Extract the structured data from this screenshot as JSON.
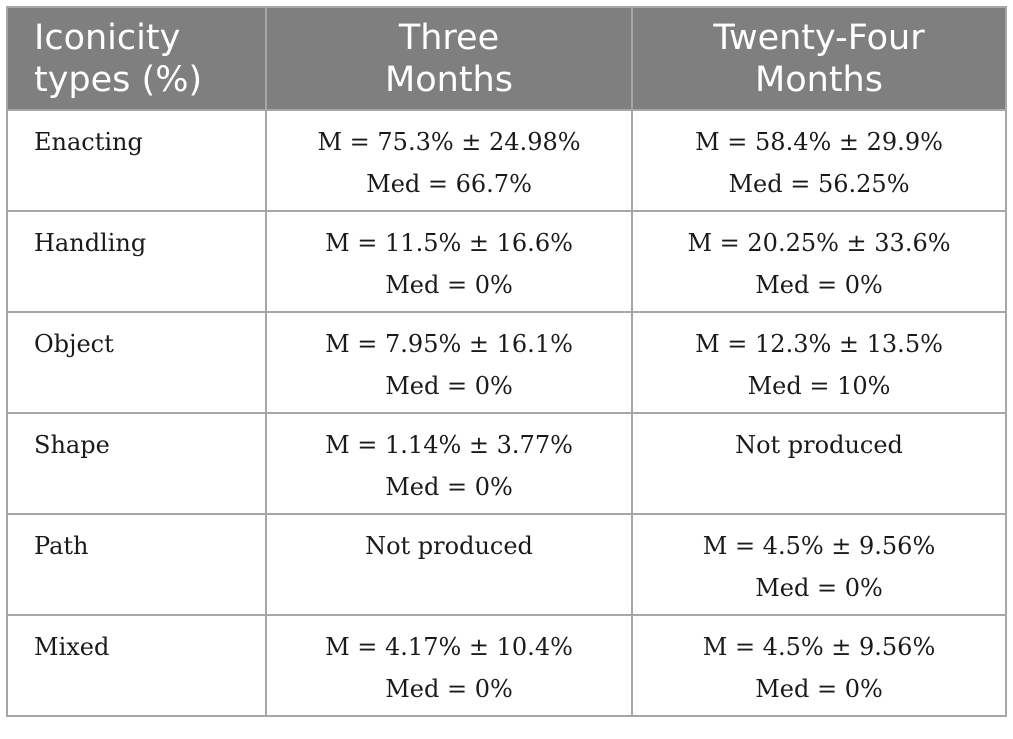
{
  "table": {
    "headers": [
      [
        "Iconicity",
        "types (%)"
      ],
      [
        "Three",
        "Months"
      ],
      [
        "Twenty-Four",
        "Months"
      ]
    ],
    "rows": [
      {
        "label": "Enacting",
        "three": [
          "M = 75.3% ± 24.98%",
          "Med = 66.7%"
        ],
        "twentyfour": [
          "M = 58.4% ± 29.9%",
          "Med = 56.25%"
        ]
      },
      {
        "label": "Handling",
        "three": [
          "M = 11.5% ± 16.6%",
          "Med = 0%"
        ],
        "twentyfour": [
          "M = 20.25% ± 33.6%",
          "Med = 0%"
        ]
      },
      {
        "label": "Object",
        "three": [
          "M = 7.95% ± 16.1%",
          "Med = 0%"
        ],
        "twentyfour": [
          "M = 12.3% ± 13.5%",
          "Med = 10%"
        ]
      },
      {
        "label": "Shape",
        "three": [
          "M = 1.14% ± 3.77%",
          "Med = 0%"
        ],
        "twentyfour": [
          "Not produced",
          ""
        ]
      },
      {
        "label": "Path",
        "three": [
          "Not produced",
          ""
        ],
        "twentyfour": [
          "M = 4.5% ± 9.56%",
          "Med = 0%"
        ]
      },
      {
        "label": "Mixed",
        "three": [
          "M = 4.17% ± 10.4%",
          "Med = 0%"
        ],
        "twentyfour": [
          "M = 4.5% ± 9.56%",
          "Med = 0%"
        ]
      }
    ]
  }
}
